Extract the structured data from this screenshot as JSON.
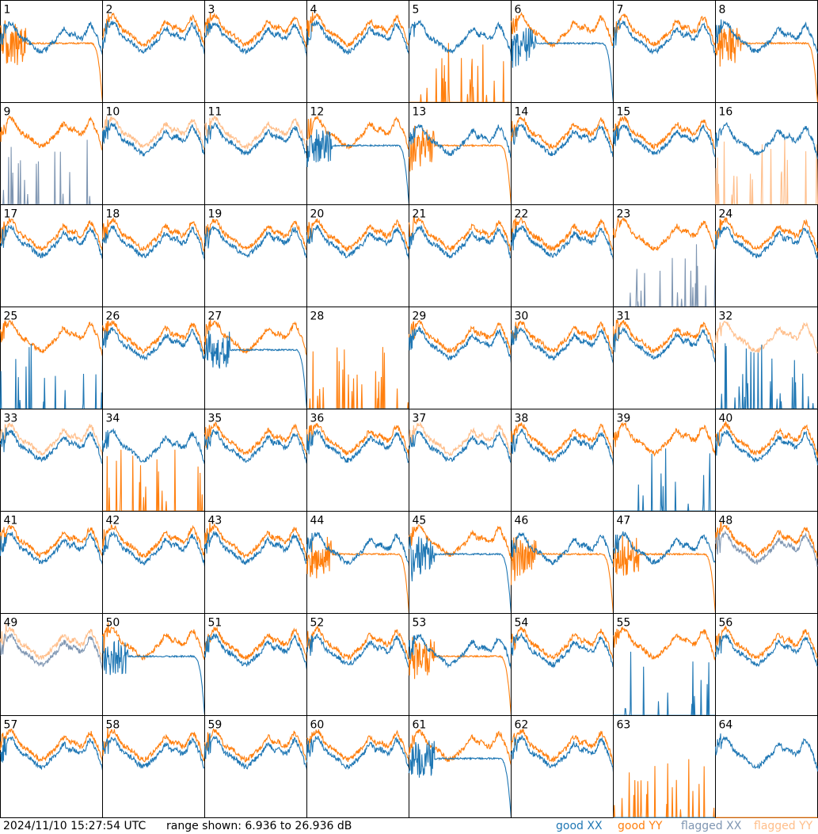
{
  "footer": {
    "timestamp": "2024/11/10 15:27:54 UTC",
    "range": "range shown: 6.936 to 26.936 dB"
  },
  "legend": [
    {
      "label": "good XX",
      "color": "#1f77b4"
    },
    {
      "label": "good YY",
      "color": "#ff7f0e"
    },
    {
      "label": "flagged XX",
      "color": "#7f96b2"
    },
    {
      "label": "flagged YY",
      "color": "#ffbe8a"
    }
  ],
  "chart_data": {
    "type": "line",
    "layout": "8x8 small multiples",
    "ylim": [
      6.936,
      26.936
    ],
    "yunit": "dB",
    "xlim": [
      0,
      1
    ],
    "series_kinds": [
      "good XX",
      "good YY",
      "flagged XX",
      "flagged YY"
    ],
    "panels": [
      {
        "label": "1",
        "xx": "good",
        "yy": "good",
        "xx_shape": "normal",
        "yy_shape": "rolloff"
      },
      {
        "label": "2",
        "xx": "good",
        "yy": "good",
        "xx_shape": "normal",
        "yy_shape": "normal"
      },
      {
        "label": "3",
        "xx": "good",
        "yy": "good",
        "xx_shape": "normal",
        "yy_shape": "normal"
      },
      {
        "label": "4",
        "xx": "good",
        "yy": "good",
        "xx_shape": "normal",
        "yy_shape": "normal"
      },
      {
        "label": "5",
        "xx": "good",
        "yy": "good",
        "xx_shape": "normal",
        "yy_shape": "spikes"
      },
      {
        "label": "6",
        "xx": "good",
        "yy": "good",
        "xx_shape": "rolloff",
        "yy_shape": "normal"
      },
      {
        "label": "7",
        "xx": "good",
        "yy": "good",
        "xx_shape": "normal",
        "yy_shape": "normal"
      },
      {
        "label": "8",
        "xx": "good",
        "yy": "good",
        "xx_shape": "normal",
        "yy_shape": "rolloff"
      },
      {
        "label": "9",
        "xx": "flagged",
        "yy": "good",
        "xx_shape": "spikes",
        "yy_shape": "normal"
      },
      {
        "label": "10",
        "xx": "good",
        "yy": "flagged",
        "xx_shape": "normal",
        "yy_shape": "normal"
      },
      {
        "label": "11",
        "xx": "good",
        "yy": "flagged",
        "xx_shape": "normal",
        "yy_shape": "normal"
      },
      {
        "label": "12",
        "xx": "good",
        "yy": "good",
        "xx_shape": "rolloff",
        "yy_shape": "normal"
      },
      {
        "label": "13",
        "xx": "good",
        "yy": "good",
        "xx_shape": "normal",
        "yy_shape": "rolloff"
      },
      {
        "label": "14",
        "xx": "good",
        "yy": "good",
        "xx_shape": "normal",
        "yy_shape": "normal"
      },
      {
        "label": "15",
        "xx": "good",
        "yy": "good",
        "xx_shape": "normal",
        "yy_shape": "normal"
      },
      {
        "label": "16",
        "xx": "good",
        "yy": "flagged",
        "xx_shape": "normal",
        "yy_shape": "spikes"
      },
      {
        "label": "17",
        "xx": "good",
        "yy": "good",
        "xx_shape": "normal",
        "yy_shape": "normal"
      },
      {
        "label": "18",
        "xx": "good",
        "yy": "good",
        "xx_shape": "normal",
        "yy_shape": "normal"
      },
      {
        "label": "19",
        "xx": "good",
        "yy": "good",
        "xx_shape": "normal",
        "yy_shape": "normal"
      },
      {
        "label": "20",
        "xx": "good",
        "yy": "good",
        "xx_shape": "normal",
        "yy_shape": "normal"
      },
      {
        "label": "21",
        "xx": "good",
        "yy": "good",
        "xx_shape": "normal",
        "yy_shape": "normal"
      },
      {
        "label": "22",
        "xx": "good",
        "yy": "good",
        "xx_shape": "normal",
        "yy_shape": "normal"
      },
      {
        "label": "23",
        "xx": "flagged",
        "yy": "good",
        "xx_shape": "spikes",
        "yy_shape": "normal"
      },
      {
        "label": "24",
        "xx": "good",
        "yy": "good",
        "xx_shape": "normal",
        "yy_shape": "normal"
      },
      {
        "label": "25",
        "xx": "good",
        "yy": "good",
        "xx_shape": "spikes",
        "yy_shape": "normal"
      },
      {
        "label": "26",
        "xx": "good",
        "yy": "good",
        "xx_shape": "normal",
        "yy_shape": "normal"
      },
      {
        "label": "27",
        "xx": "good",
        "yy": "good",
        "xx_shape": "rolloff",
        "yy_shape": "normal"
      },
      {
        "label": "28",
        "xx": "good",
        "yy": "good",
        "xx_shape": "flat",
        "yy_shape": "spikes"
      },
      {
        "label": "29",
        "xx": "good",
        "yy": "good",
        "xx_shape": "normal",
        "yy_shape": "normal"
      },
      {
        "label": "30",
        "xx": "good",
        "yy": "good",
        "xx_shape": "normal",
        "yy_shape": "normal"
      },
      {
        "label": "31",
        "xx": "good",
        "yy": "good",
        "xx_shape": "normal",
        "yy_shape": "normal"
      },
      {
        "label": "32",
        "xx": "good",
        "yy": "flagged",
        "xx_shape": "spikes",
        "yy_shape": "normal"
      },
      {
        "label": "33",
        "xx": "good",
        "yy": "flagged",
        "xx_shape": "normal",
        "yy_shape": "normal"
      },
      {
        "label": "34",
        "xx": "good",
        "yy": "good",
        "xx_shape": "normal",
        "yy_shape": "spikes"
      },
      {
        "label": "35",
        "xx": "good",
        "yy": "good",
        "xx_shape": "normal",
        "yy_shape": "normal"
      },
      {
        "label": "36",
        "xx": "good",
        "yy": "good",
        "xx_shape": "normal",
        "yy_shape": "normal"
      },
      {
        "label": "37",
        "xx": "good",
        "yy": "flagged",
        "xx_shape": "normal",
        "yy_shape": "normal"
      },
      {
        "label": "38",
        "xx": "good",
        "yy": "good",
        "xx_shape": "normal",
        "yy_shape": "normal"
      },
      {
        "label": "39",
        "xx": "good",
        "yy": "good",
        "xx_shape": "spikes",
        "yy_shape": "normal"
      },
      {
        "label": "40",
        "xx": "good",
        "yy": "good",
        "xx_shape": "normal",
        "yy_shape": "normal"
      },
      {
        "label": "41",
        "xx": "good",
        "yy": "good",
        "xx_shape": "normal",
        "yy_shape": "normal"
      },
      {
        "label": "42",
        "xx": "good",
        "yy": "good",
        "xx_shape": "normal",
        "yy_shape": "normal"
      },
      {
        "label": "43",
        "xx": "good",
        "yy": "good",
        "xx_shape": "normal",
        "yy_shape": "normal"
      },
      {
        "label": "44",
        "xx": "good",
        "yy": "good",
        "xx_shape": "normal",
        "yy_shape": "rolloff"
      },
      {
        "label": "45",
        "xx": "good",
        "yy": "good",
        "xx_shape": "rolloff",
        "yy_shape": "normal"
      },
      {
        "label": "46",
        "xx": "good",
        "yy": "good",
        "xx_shape": "normal",
        "yy_shape": "rolloff"
      },
      {
        "label": "47",
        "xx": "good",
        "yy": "good",
        "xx_shape": "normal",
        "yy_shape": "rolloff"
      },
      {
        "label": "48",
        "xx": "flagged",
        "yy": "good",
        "xx_shape": "normal",
        "yy_shape": "normal"
      },
      {
        "label": "49",
        "xx": "flagged",
        "yy": "flagged",
        "xx_shape": "normal",
        "yy_shape": "normal"
      },
      {
        "label": "50",
        "xx": "good",
        "yy": "good",
        "xx_shape": "rolloff",
        "yy_shape": "normal"
      },
      {
        "label": "51",
        "xx": "good",
        "yy": "good",
        "xx_shape": "normal",
        "yy_shape": "normal"
      },
      {
        "label": "52",
        "xx": "good",
        "yy": "good",
        "xx_shape": "normal",
        "yy_shape": "normal"
      },
      {
        "label": "53",
        "xx": "good",
        "yy": "good",
        "xx_shape": "normal",
        "yy_shape": "rolloff"
      },
      {
        "label": "54",
        "xx": "good",
        "yy": "good",
        "xx_shape": "normal",
        "yy_shape": "normal"
      },
      {
        "label": "55",
        "xx": "good",
        "yy": "good",
        "xx_shape": "spikes",
        "yy_shape": "normal"
      },
      {
        "label": "56",
        "xx": "good",
        "yy": "good",
        "xx_shape": "normal",
        "yy_shape": "normal"
      },
      {
        "label": "57",
        "xx": "good",
        "yy": "good",
        "xx_shape": "normal",
        "yy_shape": "normal"
      },
      {
        "label": "58",
        "xx": "good",
        "yy": "good",
        "xx_shape": "normal",
        "yy_shape": "normal"
      },
      {
        "label": "59",
        "xx": "good",
        "yy": "good",
        "xx_shape": "normal",
        "yy_shape": "normal"
      },
      {
        "label": "60",
        "xx": "good",
        "yy": "good",
        "xx_shape": "normal",
        "yy_shape": "normal"
      },
      {
        "label": "61",
        "xx": "good",
        "yy": "good",
        "xx_shape": "rolloff",
        "yy_shape": "normal"
      },
      {
        "label": "62",
        "xx": "good",
        "yy": "good",
        "xx_shape": "normal",
        "yy_shape": "normal"
      },
      {
        "label": "63",
        "xx": "good",
        "yy": "good",
        "xx_shape": "flat",
        "yy_shape": "spikes"
      },
      {
        "label": "64",
        "xx": "good",
        "yy": "good",
        "xx_shape": "normal",
        "yy_shape": "flat"
      }
    ]
  }
}
